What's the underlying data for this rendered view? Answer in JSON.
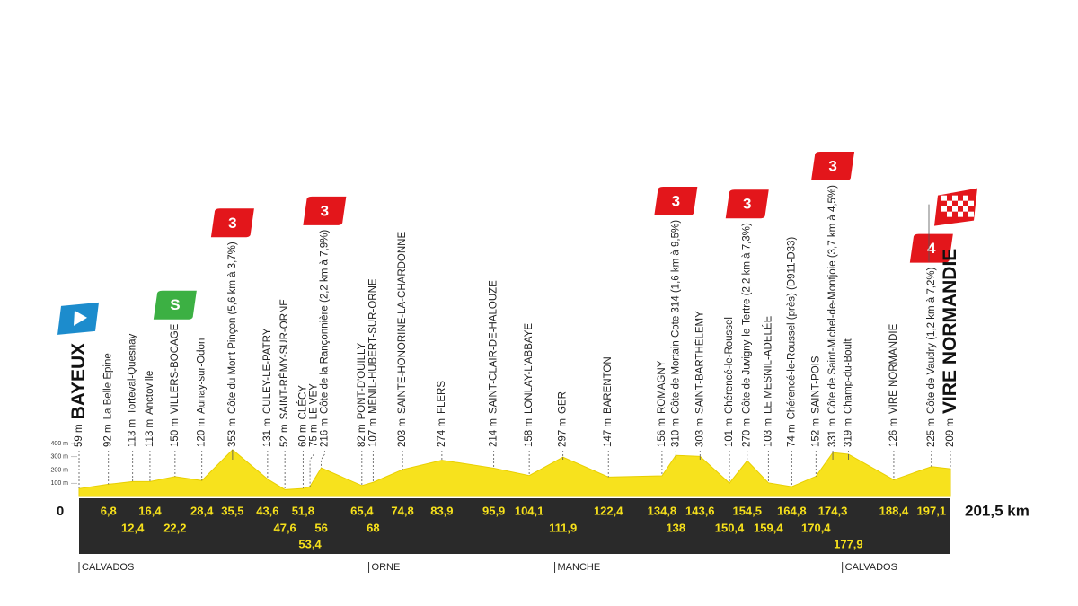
{
  "chart_data": {
    "type": "area",
    "color": "#f7e21d",
    "xlim": [
      0,
      201.5
    ],
    "ylim": [
      0,
      400
    ],
    "yticks": [
      {
        "value": 100,
        "label": "100 m"
      },
      {
        "value": 200,
        "label": "200 m"
      },
      {
        "value": 300,
        "label": "300 m"
      },
      {
        "value": 400,
        "label": "400 m"
      }
    ],
    "x": [
      0,
      6.8,
      12.4,
      16.4,
      22.2,
      28.4,
      35.5,
      43.6,
      47.6,
      51.8,
      53.4,
      56,
      65.4,
      68,
      74.8,
      83.9,
      95.9,
      104.1,
      111.9,
      122.4,
      134.8,
      138,
      143.6,
      150.4,
      154.5,
      159.4,
      164.8,
      170.4,
      174.3,
      177.9,
      188.4,
      197.1,
      201.5
    ],
    "x_labels": [
      "0",
      "6,8",
      "12,4",
      "16,4",
      "22,2",
      "28,4",
      "35,5",
      "43,6",
      "47,6",
      "51,8",
      "53,4",
      "56",
      "65,4",
      "68",
      "74,8",
      "83,9",
      "95,9",
      "104,1",
      "111,9",
      "122,4",
      "134,8",
      "138",
      "143,6",
      "150,4",
      "154,5",
      "159,4",
      "164,8",
      "170,4",
      "174,3",
      "177,9",
      "188,4",
      "197,1",
      "201,5 km"
    ],
    "values": [
      59,
      92,
      113,
      113,
      150,
      120,
      353,
      131,
      52,
      60,
      75,
      216,
      82,
      107,
      203,
      274,
      214,
      158,
      297,
      147,
      156,
      310,
      303,
      101,
      270,
      103,
      74,
      152,
      331,
      319,
      126,
      225,
      209
    ],
    "value_labels": [
      "59 m",
      "92 m",
      "113 m",
      "113 m",
      "150 m",
      "120 m",
      "353 m",
      "131 m",
      "52 m",
      "60 m",
      "75 m",
      "216 m",
      "82 m",
      "107 m",
      "203 m",
      "274 m",
      "214 m",
      "158 m",
      "297 m",
      "147 m",
      "156 m",
      "310 m",
      "303 m",
      "101 m",
      "270 m",
      "103 m",
      "74 m",
      "152 m",
      "331 m",
      "319 m",
      "126 m",
      "225 m",
      "209 m"
    ],
    "names": [
      "BAYEUX",
      "La Belle Épine",
      "Torteval-Quesnay",
      "Anctoville",
      "VILLERS-BOCAGE",
      "Aunay-sur-Odon",
      "Côte du Mont Pinçon (5,6 km à 3,7%)",
      "CULEY-LE-PATRY",
      "SAINT-RÉMY-SUR-ORNE",
      "CLÉCY",
      "LE VEY",
      "Côte de la Rançonnière (2,2 km à 7,9%)",
      "PONT-D'OUILLY",
      "MÉNIL-HUBERT-SUR-ORNE",
      "SAINTE-HONORINE-LA-CHARDONNE",
      "FLERS",
      "SAINT-CLAIR-DE-HALOUZE",
      "LONLAY-L'ABBAYE",
      "GER",
      "BARENTON",
      "ROMAGNY",
      "Côte de Mortain Cote 314 (1,6 km à 9,5%)",
      "SAINT-BARTHÉLEMY",
      "Chérencé-le-Roussel",
      "Côte de Juvigny-le-Tertre (2,2 km à 7,3%)",
      "LE MESNIL-ADELÉE",
      "Chérencé-le-Roussel (près) (D911-D33)",
      "SAINT-POIS",
      "Côte de Saint-Michel-de-Montjoie (3,7 km à 4,5%)",
      "Champ-du-Boult",
      "VIRE NORMANDIE",
      "Côte de Vaudry (1,2 km à 7,2%)",
      "VIRE NORMANDIE"
    ],
    "badges": [
      null,
      null,
      null,
      null,
      "S",
      null,
      "3",
      null,
      null,
      null,
      null,
      "3",
      null,
      null,
      null,
      null,
      null,
      null,
      null,
      null,
      null,
      "3",
      null,
      null,
      "3",
      null,
      null,
      null,
      "3",
      null,
      null,
      "4",
      null
    ],
    "regions": [
      {
        "name": "CALVADOS",
        "x": 0
      },
      {
        "name": "ORNE",
        "x": 67
      },
      {
        "name": "MANCHE",
        "x": 110
      },
      {
        "name": "CALVADOS",
        "x": 176.5
      }
    ]
  }
}
